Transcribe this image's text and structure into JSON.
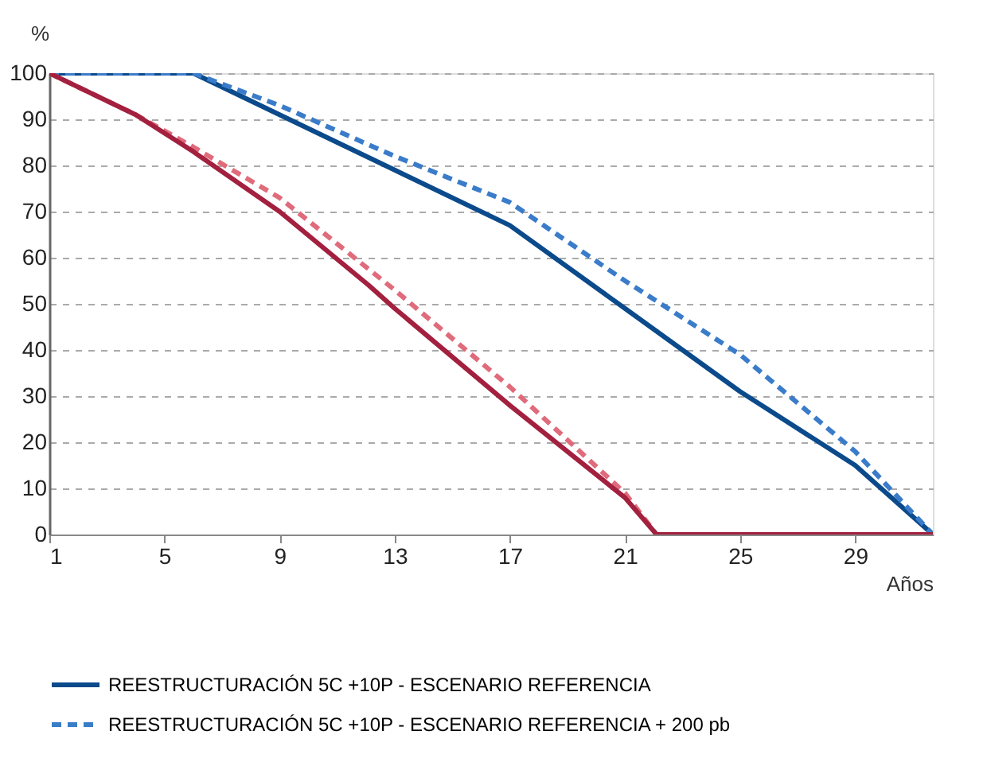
{
  "chart_data": {
    "type": "line",
    "ylabel": "%",
    "xlabel": "Años",
    "xlim": [
      1,
      31.7
    ],
    "xticks": [
      1,
      5,
      9,
      13,
      17,
      21,
      25,
      29
    ],
    "ylim": [
      0,
      100
    ],
    "yticks": [
      0,
      10,
      20,
      30,
      40,
      50,
      60,
      70,
      80,
      90,
      100
    ],
    "grid": "y",
    "legend": "bottom",
    "marker": "none",
    "series": [
      {
        "name": "REESTRUCTURACIÓN 5C +10P - ESCENARIO REFERENCIA",
        "color": "#0b4a8b",
        "line_style": "solid",
        "x": [
          1,
          6,
          9,
          13,
          17,
          21,
          25,
          29,
          31.7
        ],
        "values": [
          100,
          100,
          91,
          79,
          67,
          49,
          31,
          15,
          0
        ]
      },
      {
        "name": "REESTRUCTURACIÓN 5C +10P - ESCENARIO REFERENCIA + 200 pb",
        "color": "#3a7cc9",
        "line_style": "dashed",
        "x": [
          1,
          6,
          9,
          13,
          17,
          21,
          25,
          29,
          31.7
        ],
        "values": [
          100,
          100,
          93,
          82,
          72,
          55,
          39,
          18,
          0
        ]
      },
      {
        "color": "#e06b7b",
        "line_style": "dashed",
        "x": [
          1,
          4,
          6,
          9,
          13,
          17,
          21,
          22.1,
          31.7
        ],
        "values": [
          100,
          91,
          84,
          73,
          53,
          32,
          9,
          0,
          0
        ]
      },
      {
        "color": "#a3203f",
        "line_style": "solid",
        "x": [
          1,
          4,
          6,
          9,
          12.1,
          13,
          17,
          21,
          22.1,
          31.7
        ],
        "values": [
          100,
          91,
          83,
          70,
          54,
          49,
          28,
          8,
          0,
          0
        ]
      }
    ]
  }
}
